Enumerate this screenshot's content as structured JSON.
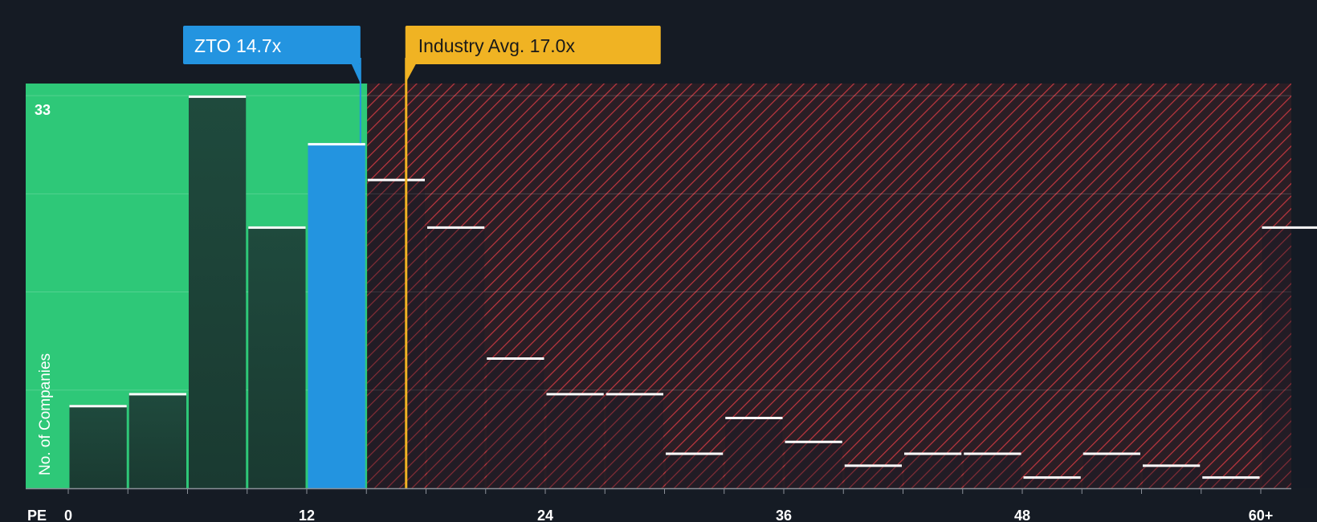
{
  "chart_data": {
    "type": "bar",
    "title": "",
    "xlabel": "PE",
    "ylabel": "No. of Companies",
    "y_top_label": "33",
    "ylim": [
      0,
      34
    ],
    "xlim": [
      0,
      61.5
    ],
    "bin_width": 3,
    "x_ticks": [
      {
        "value": 0,
        "label": "0"
      },
      {
        "value": 12,
        "label": "12"
      },
      {
        "value": 24,
        "label": "24"
      },
      {
        "value": 36,
        "label": "36"
      },
      {
        "value": 48,
        "label": "48"
      },
      {
        "value": 60,
        "label": "60+"
      }
    ],
    "bins": [
      {
        "start": 0,
        "end": 3,
        "count": 7
      },
      {
        "start": 3,
        "end": 6,
        "count": 8
      },
      {
        "start": 6,
        "end": 9,
        "count": 33
      },
      {
        "start": 9,
        "end": 12,
        "count": 22
      },
      {
        "start": 12,
        "end": 15,
        "count": 29,
        "highlight": true
      },
      {
        "start": 15,
        "end": 18,
        "count": 26
      },
      {
        "start": 18,
        "end": 21,
        "count": 22
      },
      {
        "start": 21,
        "end": 24,
        "count": 11
      },
      {
        "start": 24,
        "end": 27,
        "count": 8
      },
      {
        "start": 27,
        "end": 30,
        "count": 8
      },
      {
        "start": 30,
        "end": 33,
        "count": 3
      },
      {
        "start": 33,
        "end": 36,
        "count": 6
      },
      {
        "start": 36,
        "end": 39,
        "count": 4
      },
      {
        "start": 39,
        "end": 42,
        "count": 2
      },
      {
        "start": 42,
        "end": 45,
        "count": 3
      },
      {
        "start": 45,
        "end": 48,
        "count": 3
      },
      {
        "start": 48,
        "end": 51,
        "count": 1
      },
      {
        "start": 51,
        "end": 54,
        "count": 3
      },
      {
        "start": 54,
        "end": 57,
        "count": 2
      },
      {
        "start": 57,
        "end": 60,
        "count": 1
      },
      {
        "start": 60,
        "end": 63,
        "count": 22
      }
    ],
    "company": {
      "ticker": "ZTO",
      "value": 14.7,
      "label": "ZTO 14.7x",
      "color": "#2394e0"
    },
    "industry": {
      "value": 17.0,
      "label": "Industry Avg. 17.0x",
      "color": "#f0b323"
    },
    "colors": {
      "background": "#151b24",
      "undervalued_zone": "#2ec878",
      "overvalued_zone": "#c1373f",
      "bar_dark": "#1e4a3c",
      "highlight_bar": "#2394e0",
      "bar_cap": "#ffffff"
    }
  }
}
